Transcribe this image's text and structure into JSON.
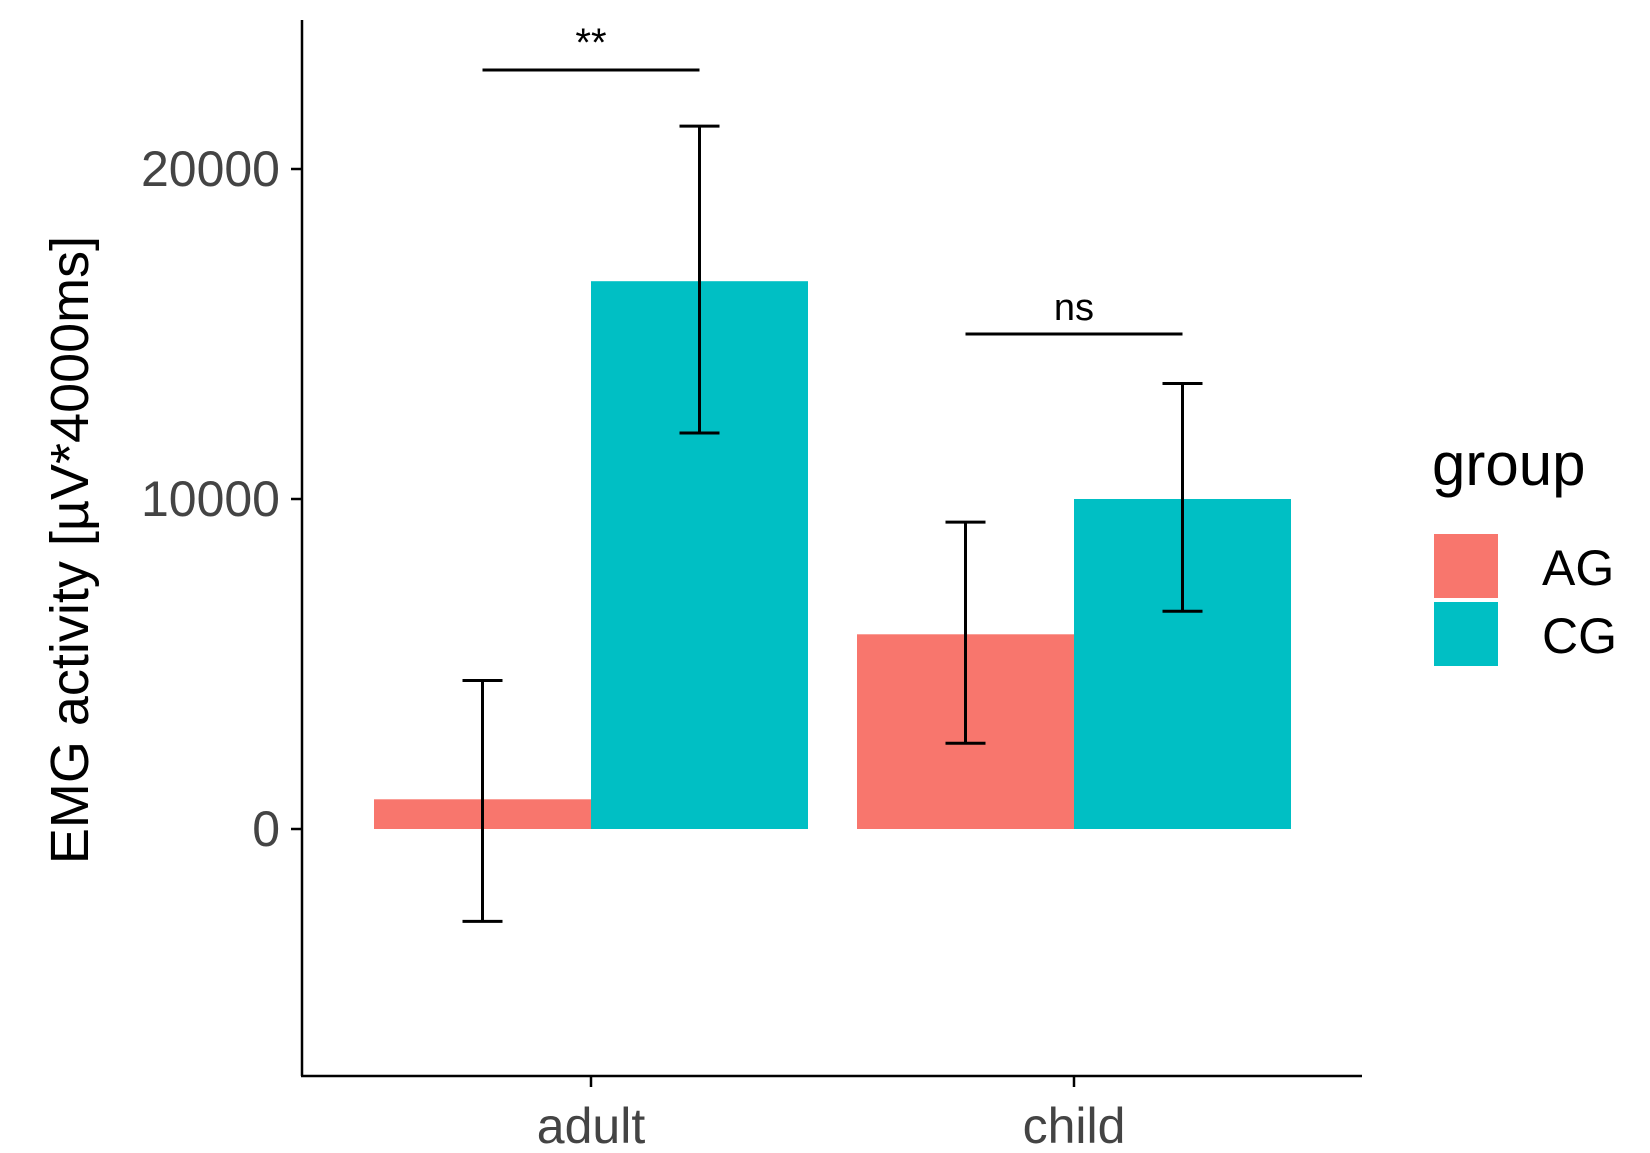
{
  "chart_data": {
    "type": "bar",
    "title": "",
    "xlabel": "",
    "ylabel": "EMG activity [µV*4000ms]",
    "categories": [
      "adult",
      "child"
    ],
    "ylim": [
      -7500,
      24500
    ],
    "yticks": [
      0,
      10000,
      20000
    ],
    "yticklabels": [
      "0",
      "10000",
      "20000"
    ],
    "legend": {
      "title": "group",
      "position": "right",
      "entries": [
        "AG",
        "CG"
      ]
    },
    "series": [
      {
        "name": "AG",
        "color": "#F8766D",
        "values": [
          900,
          5900
        ],
        "err_low": [
          -2800,
          2600
        ],
        "err_high": [
          4500,
          9300
        ]
      },
      {
        "name": "CG",
        "color": "#00BFC4",
        "values": [
          16600,
          10000
        ],
        "err_low": [
          12000,
          6600
        ],
        "err_high": [
          21300,
          13500
        ]
      }
    ],
    "annotations": [
      {
        "category": "adult",
        "label": "**",
        "y": 23000
      },
      {
        "category": "child",
        "label": "ns",
        "y": 15000
      }
    ]
  }
}
